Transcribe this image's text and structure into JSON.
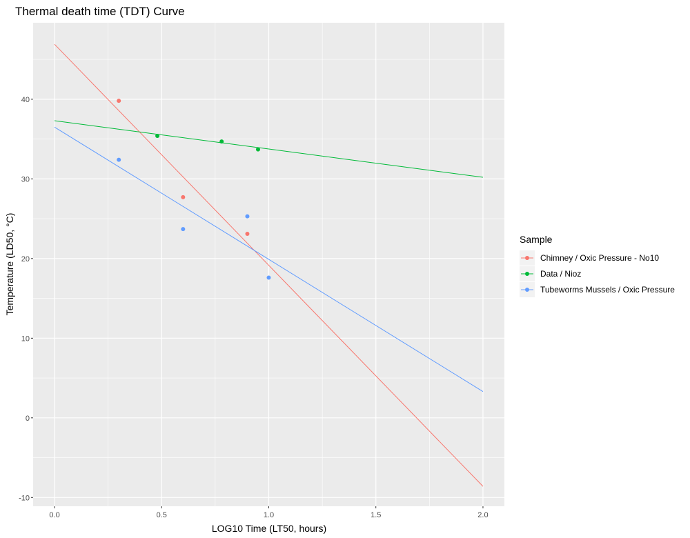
{
  "chart_data": {
    "type": "scatter",
    "title": "Thermal death time (TDT) Curve",
    "xlabel": "LOG10 Time (LT50, hours)",
    "ylabel": "Temperature (LD50, °C)",
    "xlim": [
      -0.1,
      2.1
    ],
    "ylim": [
      -11.1,
      49.6
    ],
    "x_ticks": [
      0.0,
      0.5,
      1.0,
      1.5,
      2.0
    ],
    "x_tick_labels": [
      "0.0",
      "0.5",
      "1.0",
      "1.5",
      "2.0"
    ],
    "y_ticks": [
      -10,
      0,
      10,
      20,
      30,
      40
    ],
    "y_tick_labels": [
      "-10",
      "0",
      "10",
      "20",
      "30",
      "40"
    ],
    "grid": true,
    "legend": {
      "title": "Sample",
      "position": "right"
    },
    "series": [
      {
        "name": "Chimney / Oxic Pressure - No10",
        "color": "#F8766D",
        "points": [
          [
            0.3,
            39.8
          ],
          [
            0.6,
            27.7
          ],
          [
            0.9,
            23.1
          ]
        ],
        "fit_line": [
          [
            0.0,
            46.9
          ],
          [
            2.0,
            -8.6
          ]
        ]
      },
      {
        "name": "Data / Nioz",
        "color": "#00BA38",
        "points": [
          [
            0.48,
            35.4
          ],
          [
            0.78,
            34.7
          ],
          [
            0.95,
            33.7
          ]
        ],
        "fit_line": [
          [
            0.0,
            37.3
          ],
          [
            2.0,
            30.2
          ]
        ]
      },
      {
        "name": "Tubeworms Mussels / Oxic Pressure",
        "color": "#619CFF",
        "points": [
          [
            0.3,
            32.4
          ],
          [
            0.6,
            23.7
          ],
          [
            0.9,
            25.3
          ],
          [
            1.0,
            17.6
          ]
        ],
        "fit_line": [
          [
            0.0,
            36.5
          ],
          [
            2.0,
            3.3
          ]
        ]
      }
    ]
  }
}
